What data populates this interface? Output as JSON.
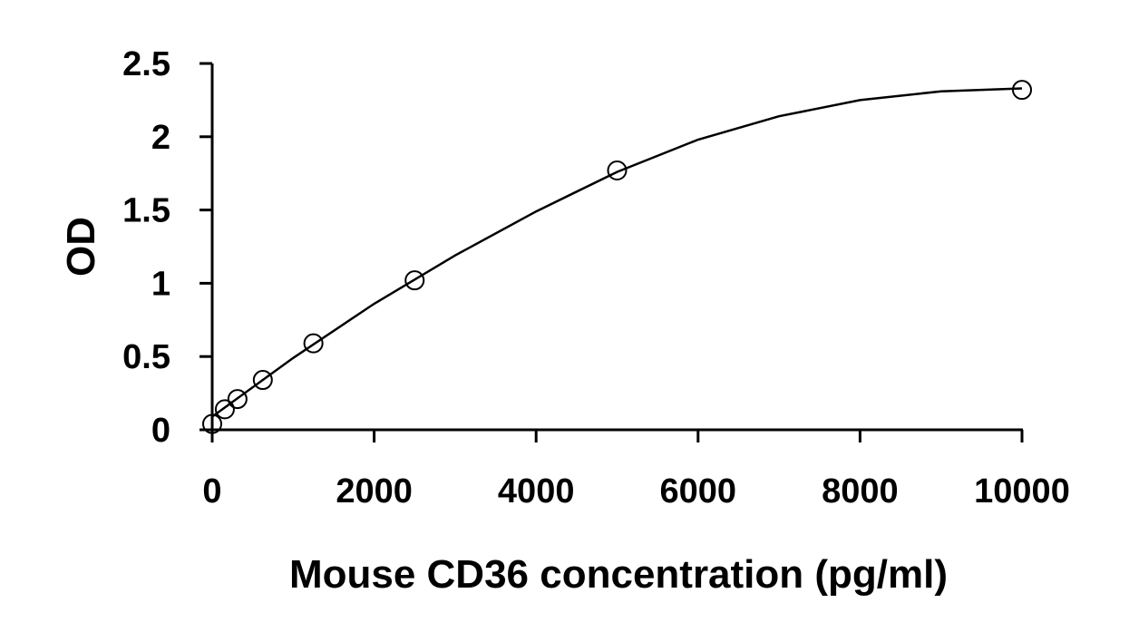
{
  "chart_data": {
    "type": "scatter",
    "title": "",
    "xlabel": "Mouse CD36 concentration (pg/ml)",
    "ylabel": "OD",
    "xlim": [
      0,
      10000
    ],
    "ylim": [
      0,
      2.5
    ],
    "xticks": [
      0,
      2000,
      4000,
      6000,
      8000,
      10000
    ],
    "yticks": [
      0,
      0.5,
      1,
      1.5,
      2,
      2.5
    ],
    "xtick_labels": [
      "0",
      "2000",
      "4000",
      "6000",
      "8000",
      "10000"
    ],
    "ytick_labels": [
      "0",
      "0.5",
      "1",
      "1.5",
      "2",
      "2.5"
    ],
    "grid": false,
    "legend": "none",
    "series": [
      {
        "marker": "open-circle",
        "x": [
          0,
          156,
          312,
          625,
          1250,
          2500,
          5000,
          10000
        ],
        "y": [
          0.04,
          0.14,
          0.21,
          0.34,
          0.59,
          1.02,
          1.77,
          2.32
        ]
      }
    ],
    "fit_curve": {
      "type": "polynomial-2",
      "x": [
        0,
        1000,
        2000,
        3000,
        4000,
        5000,
        6000,
        7000,
        8000,
        9000,
        10000
      ],
      "y": [
        0.09,
        0.49,
        0.86,
        1.19,
        1.49,
        1.76,
        1.98,
        2.14,
        2.25,
        2.31,
        2.33
      ]
    },
    "colors": {
      "axis": "#000000",
      "marker_stroke": "#000000",
      "curve": "#000000",
      "background": "#ffffff"
    }
  }
}
